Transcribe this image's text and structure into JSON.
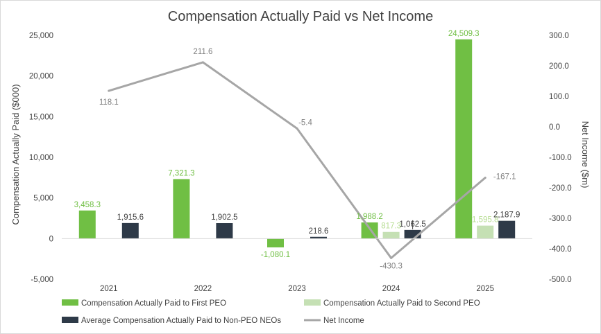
{
  "chart_data": {
    "type": "bar",
    "title": "Compensation Actually Paid vs Net Income",
    "categories": [
      "2021",
      "2022",
      "2023",
      "2024",
      "2025"
    ],
    "ylabel": "Compensation Actually Paid ($000)",
    "ylabel_right": "Net Income ($m)",
    "ylim": [
      -5000,
      25000
    ],
    "yticks": [
      -5000,
      0,
      5000,
      10000,
      15000,
      20000,
      25000
    ],
    "ytick_labels": [
      "-5,000",
      "0",
      "5,000",
      "10,000",
      "15,000",
      "20,000",
      "25,000"
    ],
    "ylim_right": [
      -500,
      300
    ],
    "yticks_right": [
      -500,
      -400,
      -300,
      -200,
      -100,
      0,
      100,
      200,
      300
    ],
    "ytick_labels_right": [
      "-500.0",
      "-400.0",
      "-300.0",
      "-200.0",
      "-100.0",
      "0.0",
      "100.0",
      "200.0",
      "300.0"
    ],
    "grid": false,
    "legend_position": "bottom",
    "series": [
      {
        "name": "Compensation Actually Paid to First PEO",
        "kind": "bar",
        "axis": "left",
        "color": "#70bf44",
        "label_color": "#70bf44",
        "values": [
          3458.3,
          7321.3,
          -1080.1,
          1988.2,
          24509.3
        ],
        "labels": [
          "3,458.3",
          "7,321.3",
          "-1,080.1",
          "1,988.2",
          "24,509.3"
        ]
      },
      {
        "name": "Compensation Actually Paid to Second PEO",
        "kind": "bar",
        "axis": "left",
        "color": "#c5e0b4",
        "label_color": "#b7dd93",
        "values": [
          null,
          null,
          null,
          817.3,
          1595.8
        ],
        "labels": [
          "",
          "",
          "",
          "817.3",
          "1,595.8"
        ]
      },
      {
        "name": "Average Compensation Actually Paid to Non-PEO NEOs",
        "kind": "bar",
        "axis": "left",
        "color": "#2e3a48",
        "label_color": "#404040",
        "values": [
          1915.6,
          1902.5,
          218.6,
          1062.5,
          2187.9
        ],
        "labels": [
          "1,915.6",
          "1,902.5",
          "218.6",
          "1,062.5",
          "2,187.9"
        ]
      },
      {
        "name": "Net Income",
        "kind": "line",
        "axis": "right",
        "color": "#a6a6a6",
        "label_color": "#7f7f7f",
        "values": [
          118.1,
          211.6,
          -5.4,
          -430.3,
          -167.1
        ],
        "labels": [
          "118.1",
          "211.6",
          "-5.4",
          "-430.3",
          "-167.1"
        ]
      }
    ]
  }
}
